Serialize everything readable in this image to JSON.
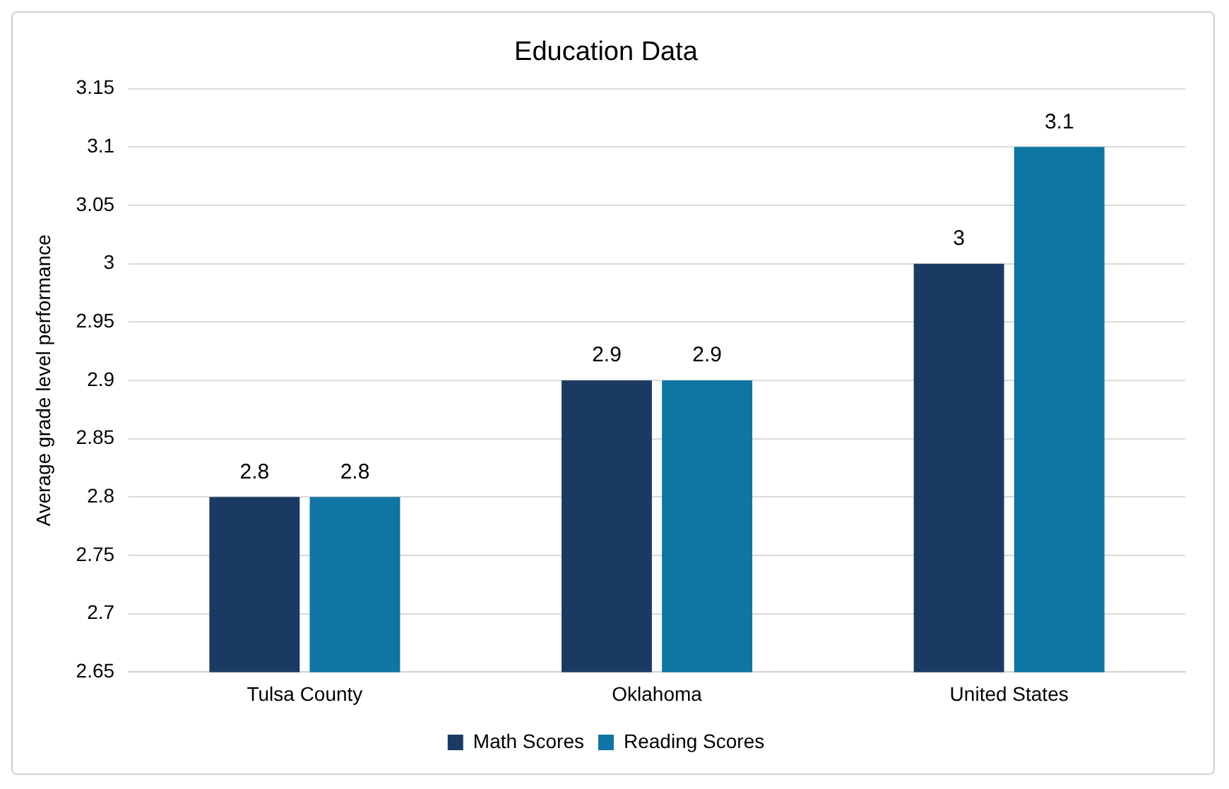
{
  "chart_data": {
    "type": "bar",
    "title": "Education Data",
    "ylabel": "Average grade level performance",
    "categories": [
      "Tulsa County",
      "Oklahoma",
      "United States"
    ],
    "series": [
      {
        "name": "Math Scores",
        "color": "#1b3a63",
        "values": [
          2.8,
          2.9,
          3
        ]
      },
      {
        "name": "Reading Scores",
        "color": "#0e75a5",
        "values": [
          2.8,
          2.9,
          3.1
        ]
      }
    ],
    "ylim": [
      2.65,
      3.15
    ],
    "yticks": [
      2.65,
      2.7,
      2.75,
      2.8,
      2.85,
      2.9,
      2.95,
      3,
      3.05,
      3.1,
      3.15
    ],
    "grid": "y",
    "legend": "bottom",
    "data_labels": true
  }
}
